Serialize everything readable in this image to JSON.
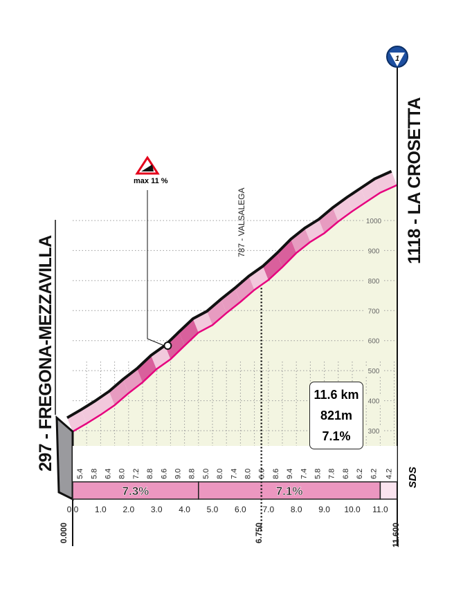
{
  "chart_data": {
    "type": "area",
    "start": {
      "name": "297 - FREGONA-MEZZAVILLA",
      "altitude": 297,
      "distance": "0.000"
    },
    "finish": {
      "name": "1118 - LA CROSETTA",
      "altitude": 1118,
      "distance": "11.600"
    },
    "intermediate": {
      "name": "787 - VALSALEGA",
      "altitude": 787,
      "distance_km": 6.75,
      "distance": "6.750"
    },
    "max_gradient": {
      "label": "max 11 %",
      "distance_km": 3.4
    },
    "segment_length_km": 0.5,
    "segment_gradients": [
      5.4,
      5.8,
      6.4,
      8.0,
      7.2,
      8.8,
      6.6,
      9.0,
      8.8,
      5.0,
      8.0,
      7.4,
      8.0,
      6.6,
      8.6,
      9.4,
      7.4,
      5.8,
      7.8,
      6.8,
      6.2,
      6.2,
      4.2
    ],
    "average_sections": [
      {
        "from": 0,
        "to": 4.5,
        "label": "7.3%"
      },
      {
        "from": 4.5,
        "to": 11.0,
        "label": "7.1%"
      },
      {
        "from": 11.0,
        "to": 11.6,
        "label": ""
      }
    ],
    "x_ticks": [
      "0.0",
      "1.0",
      "2.0",
      "3.0",
      "4.0",
      "5.0",
      "6.0",
      "7.0",
      "8.0",
      "9.0",
      "10.0",
      "11.0"
    ],
    "y_ticks": [
      300,
      400,
      500,
      600,
      700,
      800,
      900,
      1000
    ],
    "xlim": [
      0,
      11.6
    ],
    "ylim": [
      297,
      1118
    ],
    "summary": {
      "distance": "11.6 km",
      "gain": "821m",
      "avg": "7.1%"
    },
    "source_mark": "SDS",
    "finish_badge": "1",
    "colors": {
      "profile_line": "#e6007e",
      "fill": "#f3f5e1",
      "band_light": "#f2c8dc",
      "band_mid": "#e79bc0",
      "band_dark": "#d9609c",
      "badge": "#1d4fa0",
      "grad_bar": "#ec97c0"
    }
  }
}
